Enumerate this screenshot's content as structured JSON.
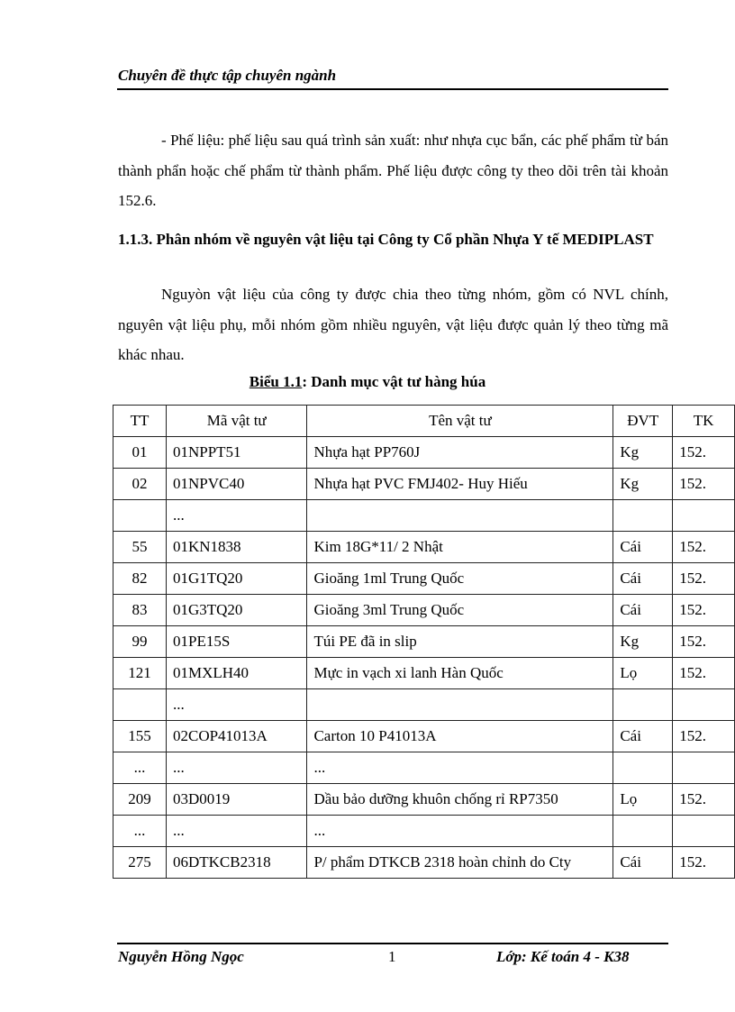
{
  "header": {
    "title": "Chuyên đề thực tập chuyên ngành"
  },
  "paragraphs": [
    "- Phế liệu: phế liệu sau quá trình sản xuất: như nhựa cục bẩn, các phế phẩm từ bán thành phẩn hoặc chế phẩm từ thành phẩm. Phế liệu được công ty theo dõi trên tài khoản 152.6.",
    "Nguyòn vật liệu của công ty được chia theo từng nhóm, gồm có NVL chính, nguyên vật liệu phụ, mỗi nhóm gồm nhiều nguyên, vật liệu được quản lý theo từng mã khác nhau."
  ],
  "section_heading": "1.1.3. Phân nhóm về nguyên vật liệu tại Công ty Cổ phần Nhựa Y tế MEDIPLAST",
  "caption": {
    "label": "Biểu 1.1",
    "text": ": Danh mục vật tư hàng húa"
  },
  "table": {
    "headers": [
      "TT",
      "Mã vật tư",
      "Tên vật tư",
      "ĐVT",
      "TK"
    ],
    "rows": [
      [
        "01",
        "01NPPT51",
        "Nhựa hạt PP760J",
        "Kg",
        "152."
      ],
      [
        "02",
        "01NPVC40",
        "Nhựa hạt PVC FMJ402- Huy Hiếu",
        "Kg",
        "152."
      ],
      [
        "",
        "...",
        "",
        "",
        ""
      ],
      [
        "55",
        "01KN1838",
        "Kim 18G*11/ 2 Nhật",
        "Cái",
        "152."
      ],
      [
        "82",
        "01G1TQ20",
        "Gioăng 1ml Trung Quốc",
        "Cái",
        "152."
      ],
      [
        "83",
        "01G3TQ20",
        "Gioăng 3ml Trung Quốc",
        "Cái",
        "152."
      ],
      [
        "99",
        "01PE15S",
        "Túi PE đã in slip",
        "Kg",
        "152."
      ],
      [
        "121",
        "01MXLH40",
        "Mực in vạch xi lanh Hàn Quốc",
        "Lọ",
        "152."
      ],
      [
        "",
        "...",
        "",
        "",
        ""
      ],
      [
        "155",
        "02COP41013A",
        "Carton 10 P41013A",
        "Cái",
        "152."
      ],
      [
        "...",
        "...",
        "...",
        "",
        ""
      ],
      [
        "209",
        "03D0019",
        "Dầu bảo dưỡng khuôn chống rỉ RP7350",
        "Lọ",
        "152."
      ],
      [
        "...",
        "...",
        "...",
        "",
        ""
      ],
      [
        "275",
        "06DTKCB2318",
        "P/ phẩm DTKCB 2318 hoàn chỉnh do Cty",
        "Cái",
        "152."
      ]
    ]
  },
  "footer": {
    "author": "Nguyễn Hồng Ngọc",
    "page": "1",
    "class": "Lớp: Kế toán 4 - K38"
  }
}
